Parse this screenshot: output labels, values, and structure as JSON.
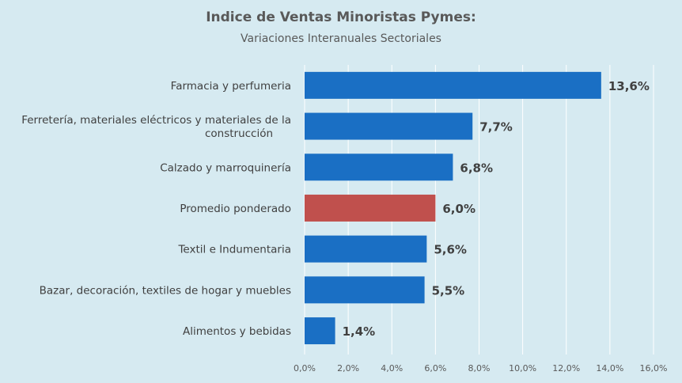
{
  "chart_data": {
    "type": "bar",
    "orientation": "horizontal",
    "title": "Indice de Ventas Minoristas Pymes:",
    "subtitle": "Variaciones Interanuales Sectoriales",
    "categories": [
      "Farmacia y perfumeria",
      "Ferretería, materiales eléctricos y materiales de la construcción",
      "Calzado y marroquinería",
      "Promedio ponderado",
      "Textil e Indumentaria",
      "Bazar, decoración, textiles de hogar y muebles",
      "Alimentos y bebidas"
    ],
    "category_lines": [
      [
        "Farmacia y perfumeria"
      ],
      [
        "Ferretería, materiales eléctricos y materiales de la",
        "construcción"
      ],
      [
        "Calzado y marroquinería"
      ],
      [
        "Promedio ponderado"
      ],
      [
        "Textil e Indumentaria"
      ],
      [
        "Bazar, decoración, textiles de hogar y muebles"
      ],
      [
        "Alimentos y bebidas"
      ]
    ],
    "values": [
      13.6,
      7.7,
      6.8,
      6.0,
      5.6,
      5.5,
      1.4
    ],
    "value_labels": [
      "13,6%",
      "7,7%",
      "6,8%",
      "6,0%",
      "5,6%",
      "5,5%",
      "1,4%"
    ],
    "highlight_index": 3,
    "xlim": [
      0,
      16
    ],
    "x_ticks": [
      0,
      2,
      4,
      6,
      8,
      10,
      12,
      14,
      16
    ],
    "x_tick_labels": [
      "0,0%",
      "2,0%",
      "4,0%",
      "6,0%",
      "8,0%",
      "10,0%",
      "12,0%",
      "14,0%",
      "16,0%"
    ],
    "grid": true,
    "colors": {
      "bar": "#1a6fc4",
      "highlight": "#c0504d",
      "background": "#d6eaf1",
      "grid": "#ffffff"
    }
  }
}
